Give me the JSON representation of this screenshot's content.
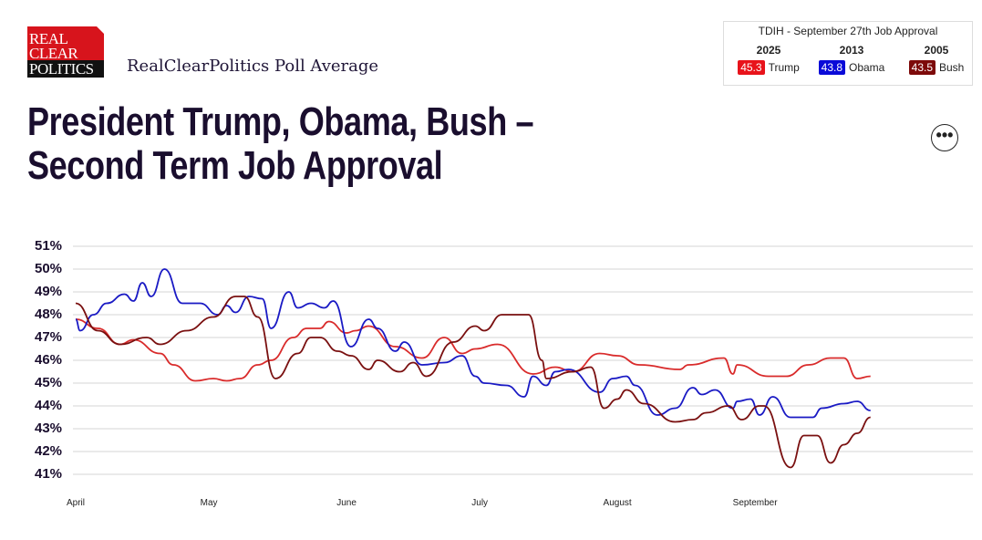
{
  "header": {
    "logo_text": [
      "REAL",
      "CLEAR",
      "POLITICS"
    ],
    "subtitle": "RealClearPolitics Poll Average",
    "more_button": "•••"
  },
  "tdih": {
    "heading": "TDIH - September 27th Job Approval",
    "entries": [
      {
        "year": "2025",
        "value": "45.3",
        "name": "Trump",
        "color": "#e8131b"
      },
      {
        "year": "2013",
        "value": "43.8",
        "name": "Obama",
        "color": "#0a0ad8"
      },
      {
        "year": "2005",
        "value": "43.5",
        "name": "Bush",
        "color": "#7d0a0a"
      }
    ]
  },
  "chart_data": {
    "type": "line",
    "title": "President Trump, Obama, Bush – Second Term Job Approval",
    "ylim": [
      41,
      51
    ],
    "y_ticks": [
      "51%",
      "50%",
      "49%",
      "48%",
      "47%",
      "46%",
      "45%",
      "44%",
      "43%",
      "42%",
      "41%"
    ],
    "x_ticks": [
      "April",
      "May",
      "June",
      "July",
      "August",
      "September"
    ],
    "grid": true,
    "series": [
      {
        "name": "Trump",
        "color": "#d92b2b",
        "points": [
          [
            "04-01",
            47.8
          ],
          [
            "04-06",
            47.4
          ],
          [
            "04-11",
            46.7
          ],
          [
            "04-14",
            46.9
          ],
          [
            "04-20",
            46.3
          ],
          [
            "04-23",
            45.8
          ],
          [
            "04-28",
            45.1
          ],
          [
            "05-02",
            45.2
          ],
          [
            "05-05",
            45.1
          ],
          [
            "05-08",
            45.2
          ],
          [
            "05-12",
            45.8
          ],
          [
            "05-15",
            46.0
          ],
          [
            "05-20",
            47.0
          ],
          [
            "05-23",
            47.4
          ],
          [
            "05-26",
            47.4
          ],
          [
            "05-28",
            47.7
          ],
          [
            "06-01",
            47.2
          ],
          [
            "06-03",
            47.3
          ],
          [
            "06-06",
            47.5
          ],
          [
            "06-12",
            46.6
          ],
          [
            "06-18",
            46.1
          ],
          [
            "06-23",
            47.0
          ],
          [
            "06-27",
            46.3
          ],
          [
            "06-30",
            46.5
          ],
          [
            "07-05",
            46.7
          ],
          [
            "07-13",
            45.4
          ],
          [
            "07-18",
            45.7
          ],
          [
            "07-22",
            45.5
          ],
          [
            "07-28",
            46.3
          ],
          [
            "08-01",
            46.2
          ],
          [
            "08-06",
            45.8
          ],
          [
            "08-15",
            45.6
          ],
          [
            "08-17",
            45.8
          ],
          [
            "08-25",
            46.1
          ],
          [
            "08-27",
            45.4
          ],
          [
            "08-28",
            45.8
          ],
          [
            "09-04",
            45.3
          ],
          [
            "09-08",
            45.3
          ],
          [
            "09-13",
            45.8
          ],
          [
            "09-18",
            46.1
          ],
          [
            "09-21",
            46.1
          ],
          [
            "09-24",
            45.2
          ],
          [
            "09-27",
            45.3
          ]
        ]
      },
      {
        "name": "Obama",
        "color": "#1a1ac4",
        "points": [
          [
            "04-01",
            47.8
          ],
          [
            "04-02",
            47.3
          ],
          [
            "04-05",
            48.0
          ],
          [
            "04-08",
            48.5
          ],
          [
            "04-12",
            48.9
          ],
          [
            "04-14",
            48.6
          ],
          [
            "04-16",
            49.4
          ],
          [
            "04-18",
            48.8
          ],
          [
            "04-21",
            50.0
          ],
          [
            "04-25",
            48.5
          ],
          [
            "04-29",
            48.5
          ],
          [
            "05-03",
            48.0
          ],
          [
            "05-05",
            48.4
          ],
          [
            "05-07",
            48.1
          ],
          [
            "05-10",
            48.8
          ],
          [
            "05-13",
            48.7
          ],
          [
            "05-15",
            47.4
          ],
          [
            "05-19",
            49.0
          ],
          [
            "05-21",
            48.3
          ],
          [
            "05-24",
            48.5
          ],
          [
            "05-27",
            48.3
          ],
          [
            "05-29",
            48.6
          ],
          [
            "06-02",
            46.6
          ],
          [
            "06-06",
            47.8
          ],
          [
            "06-08",
            47.4
          ],
          [
            "06-12",
            46.4
          ],
          [
            "06-14",
            46.8
          ],
          [
            "06-18",
            45.8
          ],
          [
            "06-23",
            45.9
          ],
          [
            "06-27",
            46.2
          ],
          [
            "06-30",
            45.3
          ],
          [
            "07-02",
            45.0
          ],
          [
            "07-07",
            44.9
          ],
          [
            "07-11",
            44.4
          ],
          [
            "07-13",
            45.3
          ],
          [
            "07-16",
            44.9
          ],
          [
            "07-18",
            45.5
          ],
          [
            "07-21",
            45.6
          ],
          [
            "07-28",
            44.6
          ],
          [
            "07-31",
            45.2
          ],
          [
            "08-03",
            45.3
          ],
          [
            "08-05",
            44.9
          ],
          [
            "08-10",
            43.6
          ],
          [
            "08-14",
            43.9
          ],
          [
            "08-18",
            44.8
          ],
          [
            "08-20",
            44.5
          ],
          [
            "08-23",
            44.7
          ],
          [
            "08-27",
            43.9
          ],
          [
            "08-28",
            44.2
          ],
          [
            "08-31",
            44.3
          ],
          [
            "09-02",
            43.6
          ],
          [
            "09-05",
            44.4
          ],
          [
            "09-09",
            43.5
          ],
          [
            "09-14",
            43.5
          ],
          [
            "09-16",
            43.9
          ],
          [
            "09-21",
            44.1
          ],
          [
            "09-24",
            44.2
          ],
          [
            "09-27",
            43.8
          ]
        ]
      },
      {
        "name": "Bush",
        "color": "#7a1010",
        "points": [
          [
            "04-01",
            48.5
          ],
          [
            "04-06",
            47.3
          ],
          [
            "04-11",
            46.7
          ],
          [
            "04-17",
            47.0
          ],
          [
            "04-20",
            46.7
          ],
          [
            "04-26",
            47.3
          ],
          [
            "05-02",
            47.9
          ],
          [
            "05-07",
            48.8
          ],
          [
            "05-09",
            48.8
          ],
          [
            "05-12",
            47.9
          ],
          [
            "05-16",
            45.2
          ],
          [
            "05-21",
            46.3
          ],
          [
            "05-24",
            47.0
          ],
          [
            "05-26",
            47.0
          ],
          [
            "05-30",
            46.4
          ],
          [
            "06-02",
            46.2
          ],
          [
            "06-06",
            45.6
          ],
          [
            "06-08",
            46.0
          ],
          [
            "06-13",
            45.5
          ],
          [
            "06-16",
            45.9
          ],
          [
            "06-19",
            45.3
          ],
          [
            "06-25",
            46.8
          ],
          [
            "06-30",
            47.5
          ],
          [
            "07-02",
            47.3
          ],
          [
            "07-06",
            48.0
          ],
          [
            "07-12",
            48.0
          ],
          [
            "07-15",
            46.0
          ],
          [
            "07-16",
            45.2
          ],
          [
            "07-22",
            45.5
          ],
          [
            "07-26",
            45.7
          ],
          [
            "07-29",
            43.9
          ],
          [
            "08-01",
            44.3
          ],
          [
            "08-03",
            44.7
          ],
          [
            "08-07",
            44.1
          ],
          [
            "08-14",
            43.3
          ],
          [
            "08-18",
            43.4
          ],
          [
            "08-21",
            43.7
          ],
          [
            "08-26",
            44.0
          ],
          [
            "08-29",
            43.4
          ],
          [
            "09-02",
            44.0
          ],
          [
            "09-03",
            44.0
          ],
          [
            "09-09",
            41.3
          ],
          [
            "09-12",
            42.7
          ],
          [
            "09-15",
            42.7
          ],
          [
            "09-18",
            41.5
          ],
          [
            "09-21",
            42.3
          ],
          [
            "09-24",
            42.8
          ],
          [
            "09-27",
            43.5
          ]
        ]
      }
    ]
  }
}
